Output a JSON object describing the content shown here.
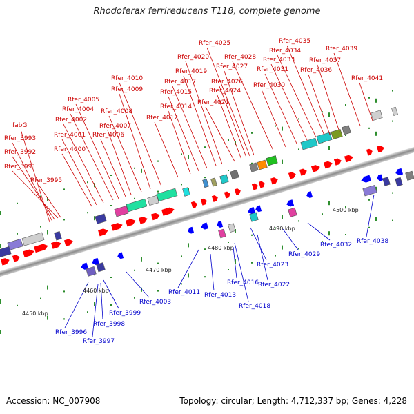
{
  "title": "Rhodoferax ferrireducens T118, complete genome",
  "accession_label": "Accession: NC_007908",
  "summary_label": "Topology: circular; Length: 4,712,337 bp; Genes: 4,228",
  "colors": {
    "forward_label": "#cc0000",
    "reverse_label": "#0000cc",
    "forward_gene": "#ff0000",
    "reverse_gene": "#0000ff",
    "backbone": "#999999"
  },
  "kbp_ticks": [
    {
      "label": "4450 kbp"
    },
    {
      "label": "4460 kbp"
    },
    {
      "label": "4470 kbp"
    },
    {
      "label": "4480 kbp"
    },
    {
      "label": "4490 kbp"
    },
    {
      "label": "4500 kbp"
    }
  ],
  "forward_labels": [
    "fabG",
    "Rfer_3993",
    "Rfer_3992",
    "Rfer_3991",
    "Rfer_3995",
    "Rfer_4000",
    "Rfer_4001",
    "Rfer_4002",
    "Rfer_4004",
    "Rfer_4005",
    "Rfer_4006",
    "Rfer_4007",
    "Rfer_4008",
    "Rfer_4009",
    "Rfer_4010",
    "Rfer_4012",
    "Rfer_4014",
    "Rfer_4015",
    "Rfer_4017",
    "Rfer_4019",
    "Rfer_4020",
    "Rfer_4021",
    "Rfer_4024",
    "Rfer_4026",
    "Rfer_4027",
    "Rfer_4025",
    "Rfer_4028",
    "Rfer_4030",
    "Rfer_4031",
    "Rfer_4033",
    "Rfer_4034",
    "Rfer_4035",
    "Rfer_4036",
    "Rfer_4037",
    "Rfer_4039",
    "Rfer_4041"
  ],
  "reverse_labels": [
    "Rfer_3996",
    "Rfer_3997",
    "Rfer_3998",
    "Rfer_3999",
    "Rfer_4003",
    "Rfer_4011",
    "Rfer_4013",
    "Rfer_4016",
    "Rfer_4018",
    "Rfer_4022",
    "Rfer_4023",
    "Rfer_4029",
    "Rfer_4032",
    "Rfer_4038"
  ]
}
